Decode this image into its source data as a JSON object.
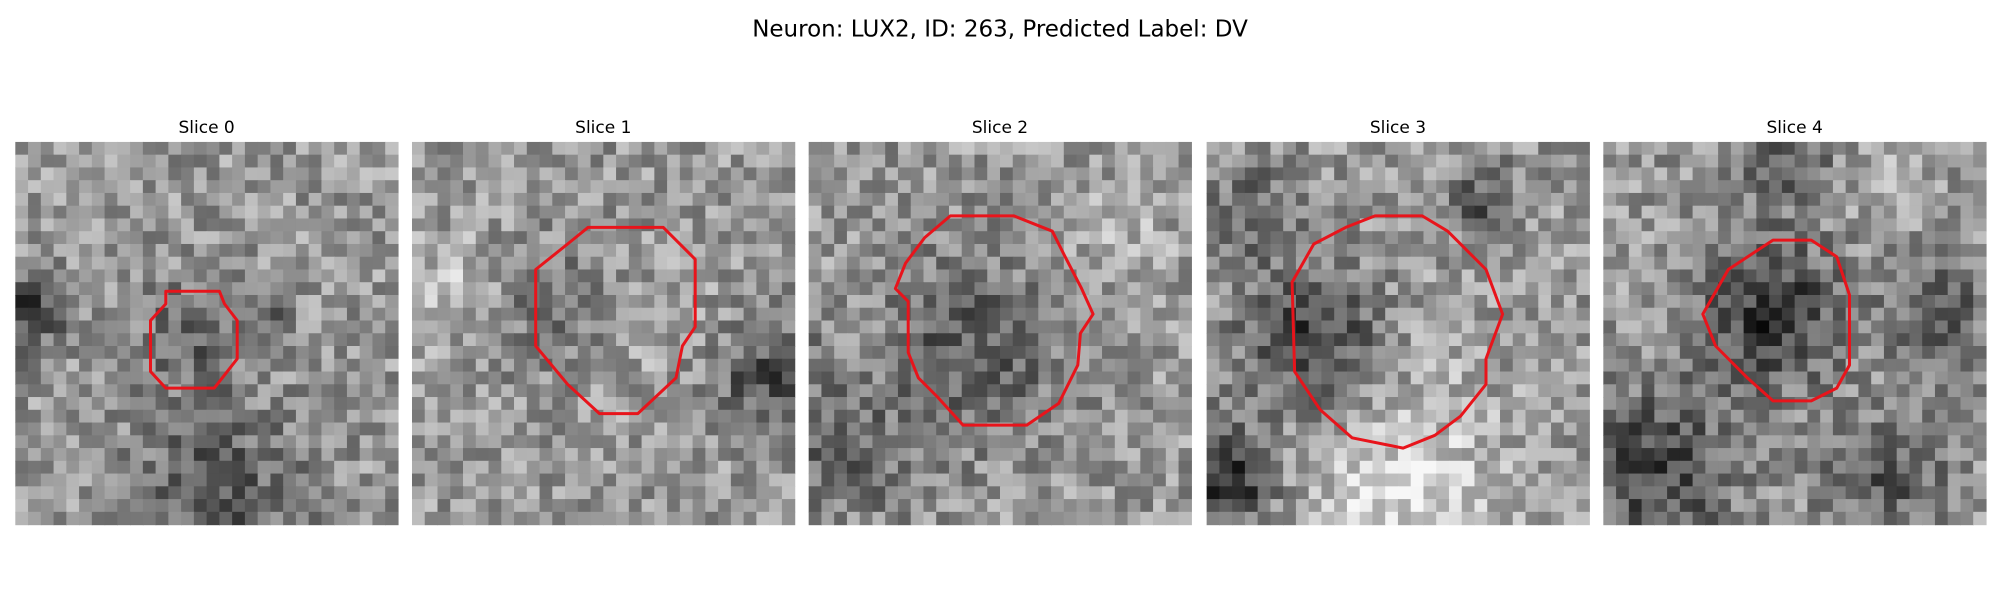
{
  "title": "Neuron: LUX2, ID: 263, Predicted Label: DV",
  "panels": [
    {
      "title": "Slice 0"
    },
    {
      "title": "Slice 1"
    },
    {
      "title": "Slice 2"
    },
    {
      "title": "Slice 3"
    },
    {
      "title": "Slice 4"
    }
  ]
}
